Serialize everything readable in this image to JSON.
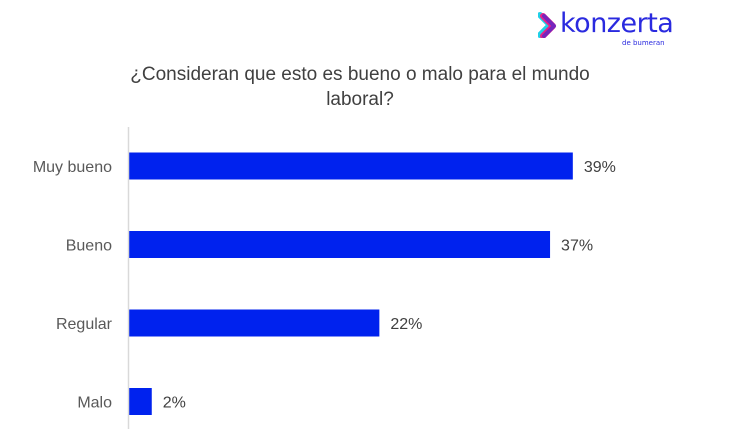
{
  "brand": {
    "name": "konzerta",
    "subtitle": "de bumeran",
    "color": "#2a2adf"
  },
  "chart_data": {
    "type": "bar",
    "orientation": "horizontal",
    "title": "¿Consideran que esto es bueno o malo para el mundo laboral?",
    "title_lines": [
      "¿Consideran que esto es bueno o malo para el mundo",
      "laboral?"
    ],
    "categories": [
      "Muy bueno",
      "Bueno",
      "Regular",
      "Malo"
    ],
    "values": [
      39,
      37,
      22,
      2
    ],
    "data_labels": [
      "39%",
      "37%",
      "22%",
      "2%"
    ],
    "unit": "%",
    "xlabel": "",
    "ylabel": "",
    "xlim": [
      0,
      40
    ],
    "grid": false,
    "legend": "none",
    "bar_color": "#0022ee"
  }
}
